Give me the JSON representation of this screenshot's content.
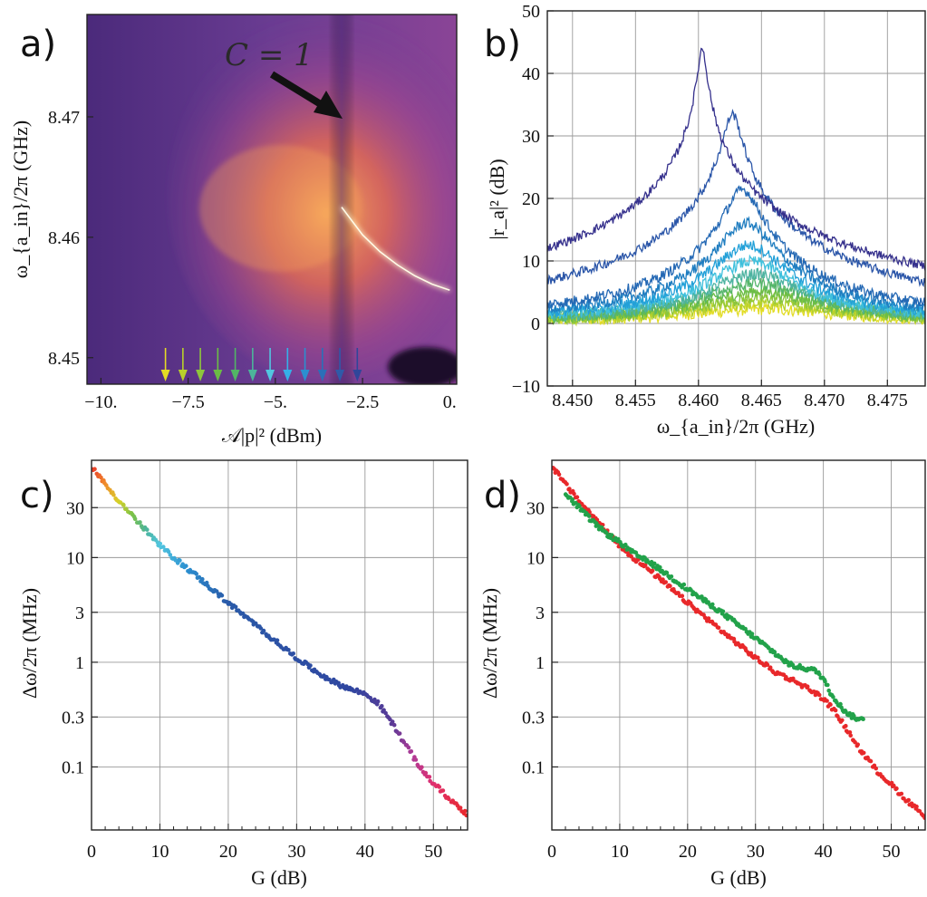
{
  "figure": {
    "panel_labels": [
      "a)",
      "b)",
      "c)",
      "d)"
    ]
  },
  "chart_data": [
    {
      "panel": "a)",
      "type": "heatmap",
      "xlabel": "𝒜|p|² (dBm)",
      "ylabel": "ω_{a_in}/2π (GHz)",
      "xlim": [
        -10.4,
        0.2
      ],
      "ylim": [
        8.4478,
        8.4785
      ],
      "xticks": [
        -10,
        -7.5,
        -5,
        -2.5,
        0
      ],
      "xtick_labels": [
        "−10.",
        "−7.5",
        "−5.",
        "−2.5",
        "0."
      ],
      "yticks": [
        8.45,
        8.46,
        8.47
      ],
      "ytick_labels": [
        "8.45",
        "8.46",
        "8.47"
      ],
      "annotation": {
        "text": "C = 1",
        "arrow_to": {
          "x": -3.1,
          "y": 8.4695
        }
      },
      "resonance_curve": {
        "x": [
          -3.1,
          -2.5,
          -2.0,
          -1.5,
          -1.0,
          -0.5,
          0.0
        ],
        "y": [
          8.4625,
          8.4602,
          8.4588,
          8.4577,
          8.4568,
          8.4561,
          8.4556
        ]
      },
      "markers": {
        "x": [
          -8.15,
          -7.65,
          -7.15,
          -6.65,
          -6.15,
          -5.65,
          -5.15,
          -4.65,
          -4.15,
          -3.65,
          -3.15,
          -2.65
        ],
        "colors": [
          "#e5dc24",
          "#b9d12a",
          "#8ec63c",
          "#6bbd45",
          "#52b565",
          "#4cb49a",
          "#52c6e0",
          "#35b0e8",
          "#2b8fd0",
          "#2b6fb8",
          "#2f5aa8",
          "#30469a"
        ]
      },
      "colormap": [
        "#4a2b7a",
        "#6a3d92",
        "#a3479a",
        "#d45d72",
        "#f28a4e",
        "#ffc773",
        "#fff4d0"
      ]
    },
    {
      "panel": "b)",
      "type": "line",
      "xlabel": "ω_{a_in}/2π (GHz)",
      "ylabel": "|r_a|² (dB)",
      "xlim": [
        8.448,
        8.478
      ],
      "ylim": [
        -10,
        50
      ],
      "xticks": [
        8.45,
        8.455,
        8.46,
        8.465,
        8.47,
        8.475
      ],
      "xtick_labels": [
        "8.450",
        "8.455",
        "8.460",
        "8.465",
        "8.470",
        "8.475"
      ],
      "yticks": [
        -10,
        0,
        10,
        20,
        30,
        40,
        50
      ],
      "ytick_labels": [
        "−10",
        "0",
        "10",
        "20",
        "30",
        "40",
        "50"
      ],
      "series": [
        {
          "color": "#35308c",
          "center": 8.4603,
          "peak": 43.7,
          "width": 0.0003,
          "base": 0.5
        },
        {
          "color": "#2a55a8",
          "center": 8.4627,
          "peak": 32.8,
          "width": 0.0006,
          "base": 1.2
        },
        {
          "color": "#2468b4",
          "center": 8.4635,
          "peak": 20.5,
          "width": 0.0012,
          "base": 1.5
        },
        {
          "color": "#1f7dc0",
          "center": 8.4638,
          "peak": 15.2,
          "width": 0.0018,
          "base": 1.4
        },
        {
          "color": "#22a0d8",
          "center": 8.464,
          "peak": 11.8,
          "width": 0.0023,
          "base": 1.2
        },
        {
          "color": "#3fc0dc",
          "center": 8.4642,
          "peak": 9.3,
          "width": 0.0028,
          "base": 1.0
        },
        {
          "color": "#4db3a0",
          "center": 8.4645,
          "peak": 7.4,
          "width": 0.0034,
          "base": 0.8
        },
        {
          "color": "#55b56a",
          "center": 8.4647,
          "peak": 6.0,
          "width": 0.004,
          "base": 0.7
        },
        {
          "color": "#6cbd46",
          "center": 8.4649,
          "peak": 4.8,
          "width": 0.0046,
          "base": 0.6
        },
        {
          "color": "#8cc63c",
          "center": 8.465,
          "peak": 3.8,
          "width": 0.0052,
          "base": 0.5
        },
        {
          "color": "#b7d22c",
          "center": 8.4651,
          "peak": 2.9,
          "width": 0.006,
          "base": 0.4
        },
        {
          "color": "#e2dc24",
          "center": 8.4652,
          "peak": 2.1,
          "width": 0.007,
          "base": 0.3
        }
      ]
    },
    {
      "panel": "c)",
      "type": "scatter",
      "xlabel": "G (dB)",
      "ylabel": "Δω/2π (MHz)",
      "xscale": "linear",
      "yscale": "log",
      "xlim": [
        0,
        55
      ],
      "ylim": [
        0.025,
        85
      ],
      "xticks": [
        0,
        10,
        20,
        30,
        40,
        50
      ],
      "xtick_labels": [
        "0",
        "10",
        "20",
        "30",
        "40",
        "50"
      ],
      "yticks": [
        0.1,
        0.3,
        1,
        3,
        10,
        30
      ],
      "ytick_labels": [
        "0.1",
        "0.3",
        "1",
        "3",
        "10",
        "30"
      ],
      "series": [
        {
          "x": [
            0,
            2,
            4,
            6,
            8,
            10,
            12,
            15,
            20,
            25,
            30,
            33,
            36,
            38,
            40,
            42,
            44,
            46,
            48,
            50,
            52,
            55
          ],
          "y": [
            75,
            50,
            35,
            25,
            18,
            13,
            10,
            7,
            3.7,
            2.0,
            1.1,
            0.8,
            0.62,
            0.55,
            0.5,
            0.4,
            0.26,
            0.16,
            0.1,
            0.07,
            0.052,
            0.035
          ]
        }
      ]
    },
    {
      "panel": "d)",
      "type": "scatter",
      "xlabel": "G (dB)",
      "ylabel": "Δω/2π (MHz)",
      "xscale": "linear",
      "yscale": "log",
      "xlim": [
        0,
        55
      ],
      "ylim": [
        0.025,
        85
      ],
      "xticks": [
        0,
        10,
        20,
        30,
        40,
        50
      ],
      "xtick_labels": [
        "0",
        "10",
        "20",
        "30",
        "40",
        "50"
      ],
      "yticks": [
        0.1,
        0.3,
        1,
        3,
        10,
        30
      ],
      "ytick_labels": [
        "0.1",
        "0.3",
        "1",
        "3",
        "10",
        "30"
      ],
      "series": [
        {
          "color": "#e8282a",
          "x": [
            0,
            2,
            4,
            6,
            8,
            10,
            12,
            15,
            20,
            25,
            30,
            33,
            36,
            38,
            40,
            42,
            44,
            46,
            48,
            50,
            52,
            55
          ],
          "y": [
            75,
            50,
            35,
            25,
            18,
            13,
            10,
            7,
            3.7,
            2.0,
            1.1,
            0.8,
            0.65,
            0.55,
            0.45,
            0.32,
            0.2,
            0.13,
            0.09,
            0.068,
            0.05,
            0.034
          ]
        },
        {
          "color": "#22a24a",
          "x": [
            2,
            4,
            6,
            8,
            10,
            12,
            15,
            20,
            25,
            30,
            33,
            35,
            37,
            38,
            39,
            40,
            41,
            42,
            43,
            44,
            45,
            46
          ],
          "y": [
            40,
            30,
            22,
            17,
            14,
            11,
            8.5,
            5,
            3,
            1.7,
            1.2,
            0.95,
            0.88,
            0.86,
            0.82,
            0.7,
            0.52,
            0.42,
            0.35,
            0.31,
            0.29,
            0.28
          ]
        }
      ]
    }
  ]
}
